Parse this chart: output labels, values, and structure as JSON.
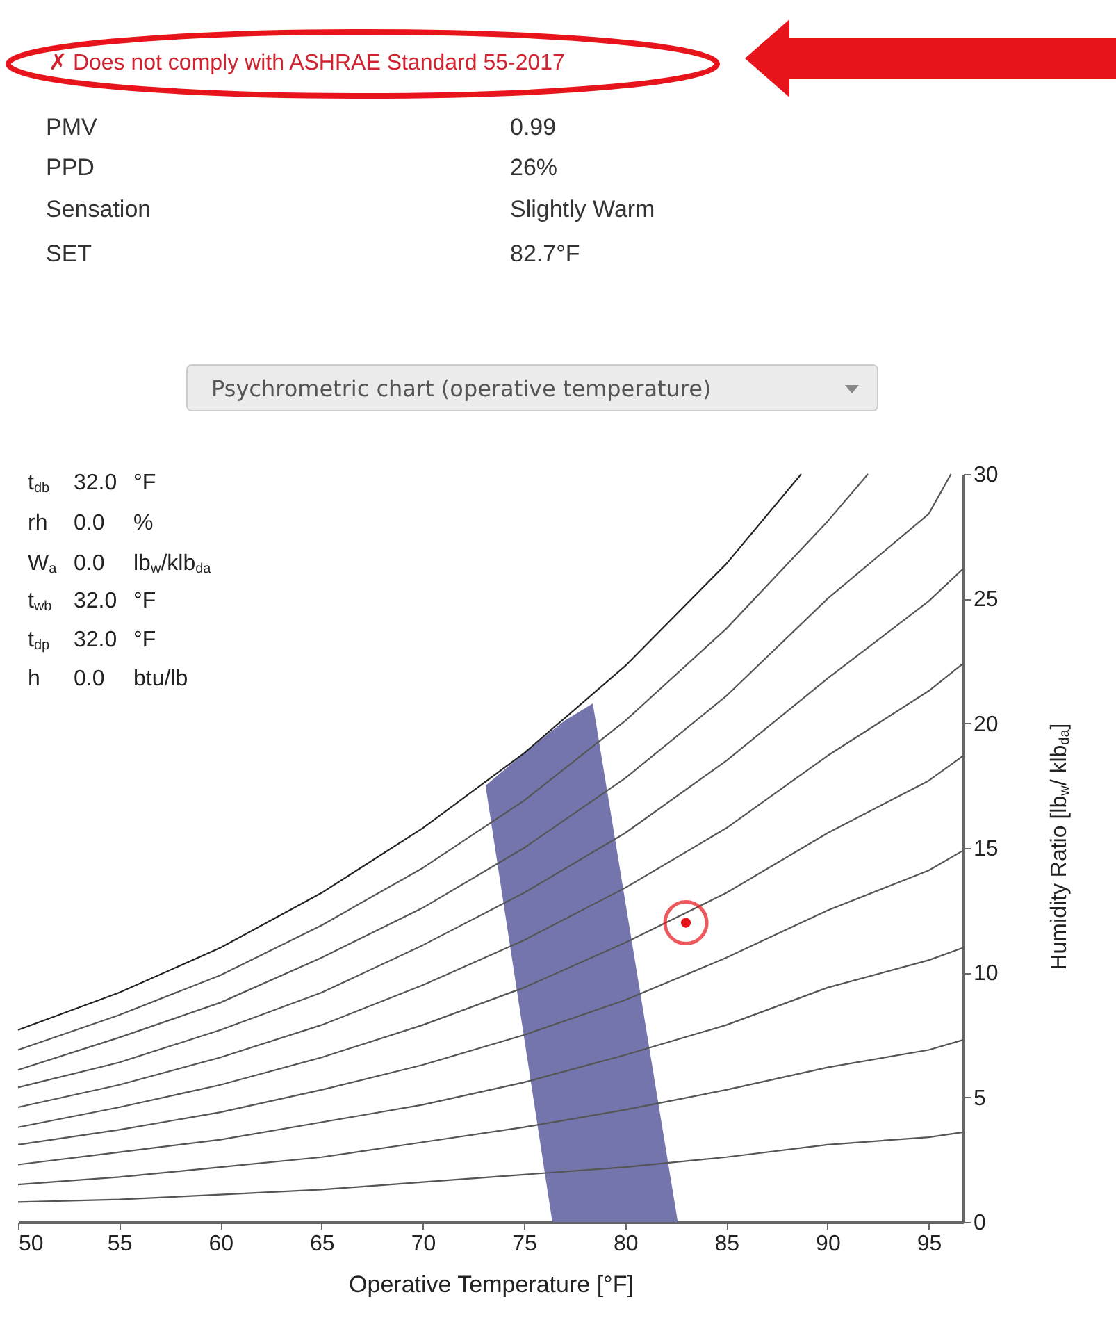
{
  "chart_data": {
    "type": "line",
    "xlabel": "Operative Temperature [°F]",
    "ylabel": "Humidity Ratio [lb$_{w}$/ klb$_{da}$]",
    "annotations": [
      "✗  Does not comply with ASHRAE Standard 55-2017",
      "PMV",
      "0.99",
      "PPD",
      "26%",
      "Sensation",
      "Slightly Warm",
      "SET",
      "82.7°F",
      "Psychrometric chart (operative temperature)",
      "t$_{db}$",
      "32.0",
      "°F",
      "rh",
      "0.0",
      "%",
      "W$_{a}$",
      "0.0",
      "lb$_{w}$/klb$_{da}$",
      "t$_{wb}$",
      "32.0",
      "°F",
      "t$_{dp}$",
      "32.0",
      "°F",
      "h",
      "0.0",
      "btu/lb"
    ],
    "xlim": [
      50,
      96.7
    ],
    "ylim": [
      0,
      30
    ],
    "xticks": [
      50,
      55,
      60,
      65,
      70,
      75,
      80,
      85,
      90,
      95
    ],
    "yticks": [
      0,
      5,
      10,
      15,
      20,
      25,
      30
    ],
    "grid": false,
    "line_style": "solid",
    "series": [
      {
        "type": "area",
        "color": "#7575ae",
        "x": [
          76.4,
          73.1,
          75,
          77,
          78.4,
          82.6
        ],
        "values": [
          0,
          17.5,
          18.8,
          20.1,
          20.8,
          0
        ]
      },
      {
        "color": "#222222",
        "x": [
          50,
          55,
          60,
          65,
          70,
          75,
          80,
          85,
          88.7
        ],
        "values": [
          7.7,
          9.2,
          11.0,
          13.2,
          15.8,
          18.8,
          22.3,
          26.4,
          30
        ]
      },
      {
        "type": "line",
        "color": "#555555",
        "x": [
          50,
          55,
          60,
          65,
          70,
          75,
          80,
          85,
          90,
          92
        ],
        "values": [
          6.9,
          8.3,
          9.9,
          11.9,
          14.2,
          16.9,
          20.1,
          23.8,
          28.1,
          30
        ]
      },
      {
        "type": "line",
        "color": "#555555",
        "x": [
          50,
          55,
          60,
          65,
          70,
          75,
          80,
          85,
          90,
          95,
          96.1
        ],
        "values": [
          6.1,
          7.4,
          8.8,
          10.6,
          12.6,
          15.0,
          17.8,
          21.1,
          25.0,
          28.4,
          30
        ]
      },
      {
        "type": "line",
        "color": "#555555",
        "x": [
          50,
          55,
          60,
          65,
          70,
          75,
          80,
          85,
          90,
          95,
          96.7
        ],
        "values": [
          5.4,
          6.4,
          7.7,
          9.2,
          11.1,
          13.2,
          15.6,
          18.5,
          21.8,
          24.9,
          26.2
        ]
      },
      {
        "type": "line",
        "color": "#555555",
        "x": [
          50,
          55,
          60,
          65,
          70,
          75,
          80,
          85,
          90,
          95,
          96.7
        ],
        "values": [
          4.6,
          5.5,
          6.6,
          7.9,
          9.5,
          11.3,
          13.4,
          15.8,
          18.7,
          21.3,
          22.4
        ]
      },
      {
        "type": "line",
        "color": "#555555",
        "x": [
          50,
          55,
          60,
          65,
          70,
          75,
          80,
          85,
          90,
          95,
          96.7
        ],
        "values": [
          3.8,
          4.6,
          5.5,
          6.6,
          7.9,
          9.4,
          11.2,
          13.2,
          15.6,
          17.7,
          18.7
        ]
      },
      {
        "type": "line",
        "color": "#555555",
        "x": [
          50,
          55,
          60,
          65,
          70,
          75,
          80,
          85,
          90,
          95,
          96.7
        ],
        "values": [
          3.1,
          3.7,
          4.4,
          5.3,
          6.3,
          7.5,
          8.9,
          10.6,
          12.5,
          14.1,
          14.9
        ]
      },
      {
        "type": "line",
        "color": "#555555",
        "x": [
          50,
          55,
          60,
          65,
          70,
          75,
          80,
          85,
          90,
          95,
          96.7
        ],
        "values": [
          2.3,
          2.8,
          3.3,
          4.0,
          4.7,
          5.6,
          6.7,
          7.9,
          9.4,
          10.5,
          11.0
        ]
      },
      {
        "type": "line",
        "color": "#555555",
        "x": [
          50,
          55,
          60,
          65,
          70,
          75,
          80,
          85,
          90,
          95,
          96.7
        ],
        "values": [
          1.5,
          1.8,
          2.2,
          2.6,
          3.2,
          3.8,
          4.5,
          5.3,
          6.2,
          6.9,
          7.3
        ]
      },
      {
        "type": "line",
        "color": "#555555",
        "x": [
          50,
          55,
          60,
          65,
          70,
          75,
          80,
          85,
          90,
          95,
          96.7
        ],
        "values": [
          0.8,
          0.9,
          1.1,
          1.3,
          1.6,
          1.9,
          2.2,
          2.6,
          3.1,
          3.4,
          3.6
        ]
      },
      {
        "type": "scatter",
        "marker": "circle",
        "color": "#e8141b",
        "x": [
          83.0
        ],
        "values": [
          12.0
        ]
      }
    ]
  }
}
